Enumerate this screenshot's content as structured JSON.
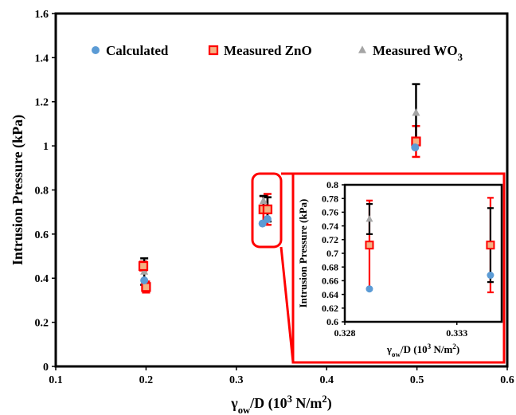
{
  "chart_data": [
    {
      "type": "scatter",
      "title": "",
      "xlabel": "γ_ow/D (10³ N/m²)",
      "xlabel_parts": {
        "gamma": "γ",
        "sub": "ow",
        "rest": "/D (10",
        "sup": "3",
        "unit": " N/m",
        "unit_sup": "2",
        "close": ")"
      },
      "ylabel": "Intrusion Pressure (kPa)",
      "xlim": [
        0.1,
        0.6
      ],
      "ylim": [
        0,
        1.6
      ],
      "xticks": [
        0.1,
        0.2,
        0.3,
        0.4,
        0.5,
        0.6
      ],
      "yticks": [
        0,
        0.2,
        0.4,
        0.6,
        0.8,
        1,
        1.2,
        1.4,
        1.6
      ],
      "legend_position": "top",
      "series": [
        {
          "name": "Calculated",
          "color": "#5b9bd5",
          "marker": "circle",
          "points": [
            {
              "x": 0.198,
              "y": 0.39
            },
            {
              "x": 0.329,
              "y": 0.648
            },
            {
              "x": 0.3345,
              "y": 0.668
            },
            {
              "x": 0.498,
              "y": 0.993
            }
          ]
        },
        {
          "name": "Measured ZnO",
          "color": "#ff0000",
          "fill": "#f4b183",
          "marker": "square",
          "points": [
            {
              "x": 0.197,
              "y": 0.455,
              "err": 0.02
            },
            {
              "x": 0.2,
              "y": 0.36,
              "err": 0.025
            },
            {
              "x": 0.33,
              "y": 0.712,
              "err": 0.06
            },
            {
              "x": 0.3345,
              "y": 0.712,
              "err": 0.07
            },
            {
              "x": 0.499,
              "y": 1.02,
              "err": 0.07
            }
          ]
        },
        {
          "name": "Measured WO3",
          "name_parts": {
            "base": "Measured WO",
            "sub": "3"
          },
          "color": "#a5a5a5",
          "err_color": "#000000",
          "marker": "triangle",
          "points": [
            {
              "x": 0.198,
              "y": 0.43,
              "err": 0.06
            },
            {
              "x": 0.33,
              "y": 0.75,
              "err": 0.023
            },
            {
              "x": 0.3345,
              "y": 0.712,
              "err": 0.055
            },
            {
              "x": 0.499,
              "y": 1.15,
              "err": 0.13
            }
          ]
        }
      ]
    },
    {
      "type": "scatter",
      "title": "",
      "xlabel": "γ_ow/D (10³ N/m²)",
      "ylabel": "Intrusion Pressure (kPa)",
      "xlim": [
        0.328,
        0.335
      ],
      "ylim": [
        0.6,
        0.8
      ],
      "xticks": [
        0.328,
        0.333
      ],
      "yticks": [
        0.6,
        0.62,
        0.64,
        0.66,
        0.68,
        0.7,
        0.72,
        0.74,
        0.76,
        0.78,
        0.8
      ],
      "series": [
        {
          "name": "Calculated",
          "color": "#5b9bd5",
          "marker": "circle",
          "points": [
            {
              "x": 0.3291,
              "y": 0.648
            },
            {
              "x": 0.3345,
              "y": 0.668
            }
          ]
        },
        {
          "name": "Measured ZnO",
          "color": "#ff0000",
          "fill": "#f4b183",
          "marker": "square",
          "points": [
            {
              "x": 0.3291,
              "y": 0.712,
              "err": 0.065
            },
            {
              "x": 0.3345,
              "y": 0.712,
              "err": 0.069
            }
          ]
        },
        {
          "name": "Measured WO3",
          "color": "#a5a5a5",
          "err_color": "#000000",
          "marker": "triangle",
          "points": [
            {
              "x": 0.3291,
              "y": 0.75,
              "err": 0.022
            },
            {
              "x": 0.3345,
              "y": 0.712,
              "err": 0.054
            }
          ]
        }
      ]
    }
  ]
}
